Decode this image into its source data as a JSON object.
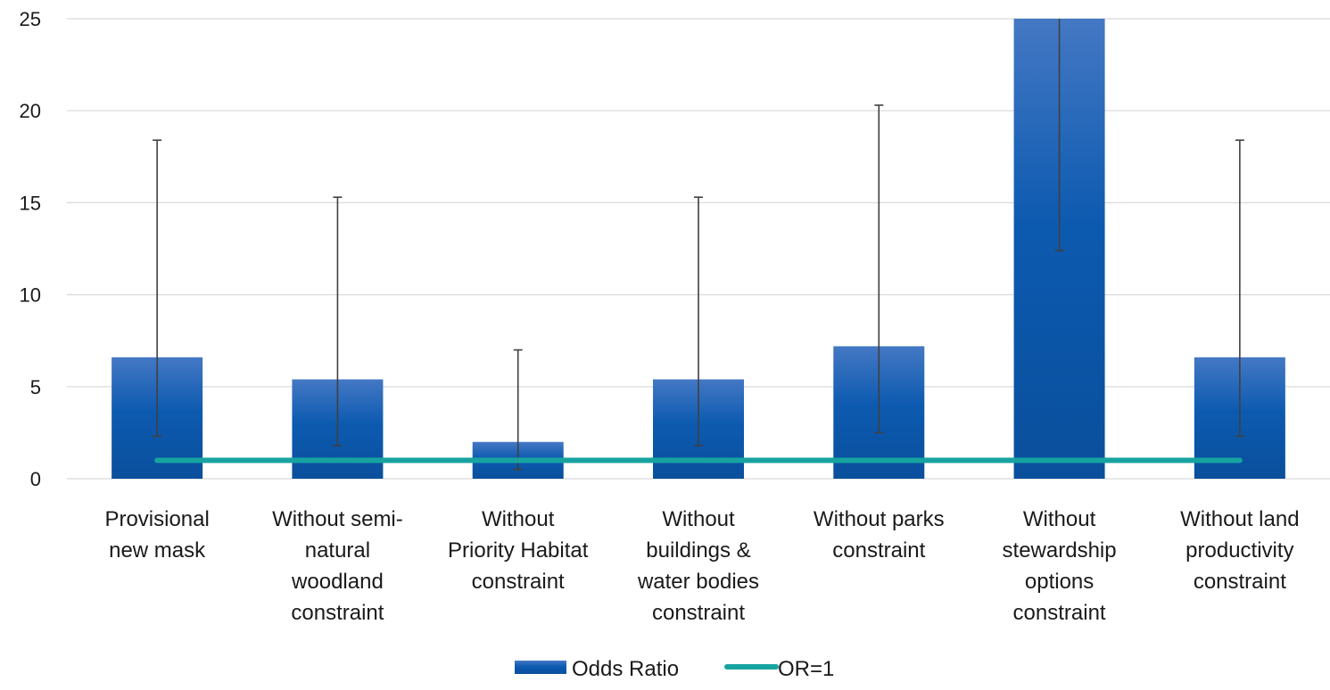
{
  "chart_data": {
    "type": "bar",
    "title": "",
    "xlabel": "",
    "ylabel": "",
    "ylim": [
      0,
      25
    ],
    "yticks": [
      0,
      5,
      10,
      15,
      20,
      25
    ],
    "grid": true,
    "legend_position": "bottom",
    "categories": [
      [
        "Provisional",
        "new mask"
      ],
      [
        "Without semi-",
        "natural",
        "woodland",
        "constraint"
      ],
      [
        "Without",
        "Priority Habitat",
        "constraint"
      ],
      [
        "Without",
        "buildings &",
        "water bodies",
        "constraint"
      ],
      [
        "Without parks",
        "constraint"
      ],
      [
        "Without",
        "stewardship",
        "options",
        "constraint"
      ],
      [
        "Without land",
        "productivity",
        "constraint"
      ]
    ],
    "series": [
      {
        "name": "Odds Ratio",
        "kind": "bar",
        "color": "#1f5fae",
        "values": [
          6.6,
          5.4,
          2.0,
          5.4,
          7.2,
          25,
          6.6
        ],
        "error_low": [
          2.3,
          1.8,
          0.5,
          1.8,
          2.5,
          12.4,
          2.3
        ],
        "error_high": [
          18.4,
          15.3,
          7.0,
          15.3,
          20.3,
          25,
          18.4
        ]
      },
      {
        "name": "OR=1",
        "kind": "line",
        "color": "#17a3a0",
        "values": [
          1,
          1,
          1,
          1,
          1,
          1,
          1
        ]
      }
    ]
  }
}
